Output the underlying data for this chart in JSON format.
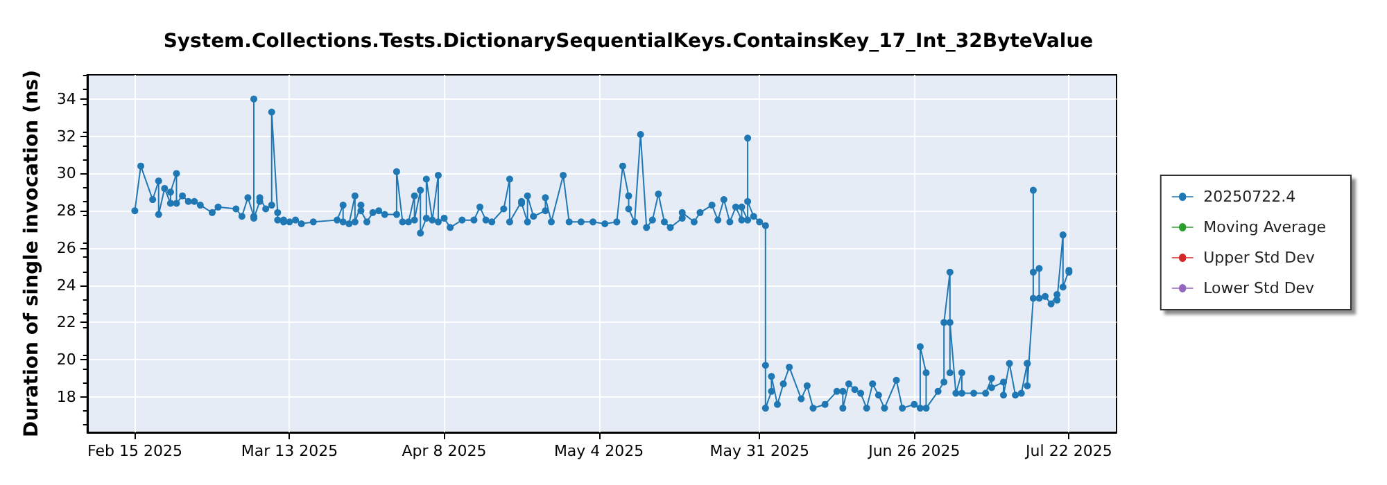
{
  "chart_data": {
    "type": "line",
    "title": "System.Collections.Tests.DictionarySequentialKeys.ContainsKey_17_Int_32ByteValue",
    "ylabel": "Duration of single invocation (ns)",
    "marker": "circle",
    "grid": true,
    "legend": "right",
    "xlim": [
      "2025-02-07",
      "2025-07-30"
    ],
    "xticks": [
      {
        "value": "2025-02-15",
        "label": "Feb 15 2025"
      },
      {
        "value": "2025-03-13",
        "label": "Mar 13 2025"
      },
      {
        "value": "2025-04-08",
        "label": "Apr 8 2025"
      },
      {
        "value": "2025-05-04",
        "label": "May 4 2025"
      },
      {
        "value": "2025-05-31",
        "label": "May 31 2025"
      },
      {
        "value": "2025-06-26",
        "label": "Jun 26 2025"
      },
      {
        "value": "2025-07-22",
        "label": "Jul 22 2025"
      }
    ],
    "ylim": [
      16.1,
      35.3
    ],
    "yticks": [
      18,
      20,
      22,
      24,
      26,
      28,
      30,
      32,
      34
    ],
    "series": [
      {
        "name": "20250722.4",
        "color": "#1f77b4",
        "x": [
          "2025-02-15",
          "2025-02-16",
          "2025-02-18",
          "2025-02-19",
          "2025-02-19",
          "2025-02-20",
          "2025-02-21",
          "2025-02-21",
          "2025-02-22",
          "2025-02-22",
          "2025-02-23",
          "2025-02-24",
          "2025-02-25",
          "2025-02-26",
          "2025-02-28",
          "2025-03-01",
          "2025-03-04",
          "2025-03-05",
          "2025-03-06",
          "2025-03-07",
          "2025-03-07",
          "2025-03-07",
          "2025-03-08",
          "2025-03-08",
          "2025-03-09",
          "2025-03-10",
          "2025-03-10",
          "2025-03-11",
          "2025-03-11",
          "2025-03-12",
          "2025-03-12",
          "2025-03-13",
          "2025-03-14",
          "2025-03-15",
          "2025-03-17",
          "2025-03-21",
          "2025-03-22",
          "2025-03-22",
          "2025-03-23",
          "2025-03-24",
          "2025-03-24",
          "2025-03-25",
          "2025-03-25",
          "2025-03-26",
          "2025-03-27",
          "2025-03-28",
          "2025-03-29",
          "2025-03-31",
          "2025-03-31",
          "2025-04-01",
          "2025-04-02",
          "2025-04-03",
          "2025-04-03",
          "2025-04-04",
          "2025-04-04",
          "2025-04-05",
          "2025-04-05",
          "2025-04-06",
          "2025-04-07",
          "2025-04-07",
          "2025-04-08",
          "2025-04-09",
          "2025-04-11",
          "2025-04-13",
          "2025-04-14",
          "2025-04-15",
          "2025-04-16",
          "2025-04-18",
          "2025-04-19",
          "2025-04-19",
          "2025-04-21",
          "2025-04-21",
          "2025-04-22",
          "2025-04-22",
          "2025-04-23",
          "2025-04-25",
          "2025-04-25",
          "2025-04-26",
          "2025-04-28",
          "2025-04-29",
          "2025-05-01",
          "2025-05-03",
          "2025-05-05",
          "2025-05-07",
          "2025-05-08",
          "2025-05-09",
          "2025-05-09",
          "2025-05-10",
          "2025-05-11",
          "2025-05-12",
          "2025-05-13",
          "2025-05-14",
          "2025-05-15",
          "2025-05-16",
          "2025-05-18",
          "2025-05-18",
          "2025-05-20",
          "2025-05-21",
          "2025-05-23",
          "2025-05-24",
          "2025-05-25",
          "2025-05-26",
          "2025-05-27",
          "2025-05-28",
          "2025-05-28",
          "2025-05-29",
          "2025-05-29",
          "2025-05-29",
          "2025-05-30",
          "2025-05-31",
          "2025-06-01",
          "2025-06-01",
          "2025-06-01",
          "2025-06-02",
          "2025-06-02",
          "2025-06-03",
          "2025-06-04",
          "2025-06-05",
          "2025-06-07",
          "2025-06-08",
          "2025-06-09",
          "2025-06-11",
          "2025-06-13",
          "2025-06-14",
          "2025-06-14",
          "2025-06-15",
          "2025-06-16",
          "2025-06-17",
          "2025-06-18",
          "2025-06-19",
          "2025-06-20",
          "2025-06-21",
          "2025-06-23",
          "2025-06-24",
          "2025-06-26",
          "2025-06-27",
          "2025-06-27",
          "2025-06-28",
          "2025-06-28",
          "2025-06-30",
          "2025-07-01",
          "2025-07-01",
          "2025-07-02",
          "2025-07-02",
          "2025-07-02",
          "2025-07-03",
          "2025-07-04",
          "2025-07-04",
          "2025-07-06",
          "2025-07-08",
          "2025-07-09",
          "2025-07-09",
          "2025-07-11",
          "2025-07-11",
          "2025-07-12",
          "2025-07-13",
          "2025-07-14",
          "2025-07-15",
          "2025-07-15",
          "2025-07-15",
          "2025-07-16",
          "2025-07-16",
          "2025-07-16",
          "2025-07-17",
          "2025-07-17",
          "2025-07-18",
          "2025-07-19",
          "2025-07-20",
          "2025-07-20",
          "2025-07-21",
          "2025-07-21",
          "2025-07-22",
          "2025-07-22"
        ],
        "values": [
          28.0,
          30.4,
          28.6,
          29.6,
          27.8,
          29.2,
          28.4,
          29.0,
          30.0,
          28.4,
          28.8,
          28.5,
          28.5,
          28.3,
          27.9,
          28.2,
          28.1,
          27.7,
          28.7,
          27.7,
          34.0,
          27.6,
          28.5,
          28.7,
          28.1,
          28.3,
          33.3,
          27.9,
          27.5,
          27.4,
          27.5,
          27.4,
          27.5,
          27.3,
          27.4,
          27.5,
          28.3,
          27.4,
          27.3,
          28.8,
          27.4,
          28.3,
          28.0,
          27.4,
          27.9,
          28.0,
          27.8,
          27.8,
          30.1,
          27.4,
          27.4,
          28.8,
          27.5,
          29.1,
          26.8,
          27.6,
          29.7,
          27.5,
          29.9,
          27.4,
          27.6,
          27.1,
          27.5,
          27.5,
          28.2,
          27.5,
          27.4,
          28.1,
          29.7,
          27.4,
          28.5,
          28.4,
          27.4,
          28.8,
          27.7,
          28.0,
          28.7,
          27.4,
          29.9,
          27.4,
          27.4,
          27.4,
          27.3,
          27.4,
          30.4,
          28.8,
          28.1,
          27.4,
          32.1,
          27.1,
          27.5,
          28.9,
          27.4,
          27.1,
          27.6,
          27.9,
          27.4,
          27.9,
          28.3,
          27.5,
          28.6,
          27.4,
          28.2,
          27.5,
          28.2,
          27.5,
          31.9,
          28.5,
          27.7,
          27.4,
          27.2,
          19.7,
          17.4,
          18.3,
          19.1,
          17.6,
          18.7,
          19.6,
          17.9,
          18.6,
          17.4,
          17.6,
          18.3,
          18.3,
          17.4,
          18.7,
          18.4,
          18.2,
          17.4,
          18.7,
          18.1,
          17.4,
          18.9,
          17.4,
          17.6,
          17.4,
          20.7,
          19.3,
          17.4,
          18.3,
          18.8,
          22.0,
          24.7,
          19.3,
          22.0,
          18.2,
          19.3,
          18.2,
          18.2,
          18.2,
          19.0,
          18.5,
          18.8,
          18.1,
          19.8,
          18.1,
          18.2,
          19.8,
          19.8,
          18.6,
          23.3,
          29.1,
          24.7,
          24.9,
          23.3,
          23.4,
          23.0,
          23.5,
          23.2,
          26.7,
          23.9,
          24.8,
          24.7
        ]
      },
      {
        "name": "Moving Average",
        "color": "#2ca02c"
      },
      {
        "name": "Upper Std Dev",
        "color": "#d62728"
      },
      {
        "name": "Lower Std Dev",
        "color": "#9467bd"
      }
    ]
  }
}
